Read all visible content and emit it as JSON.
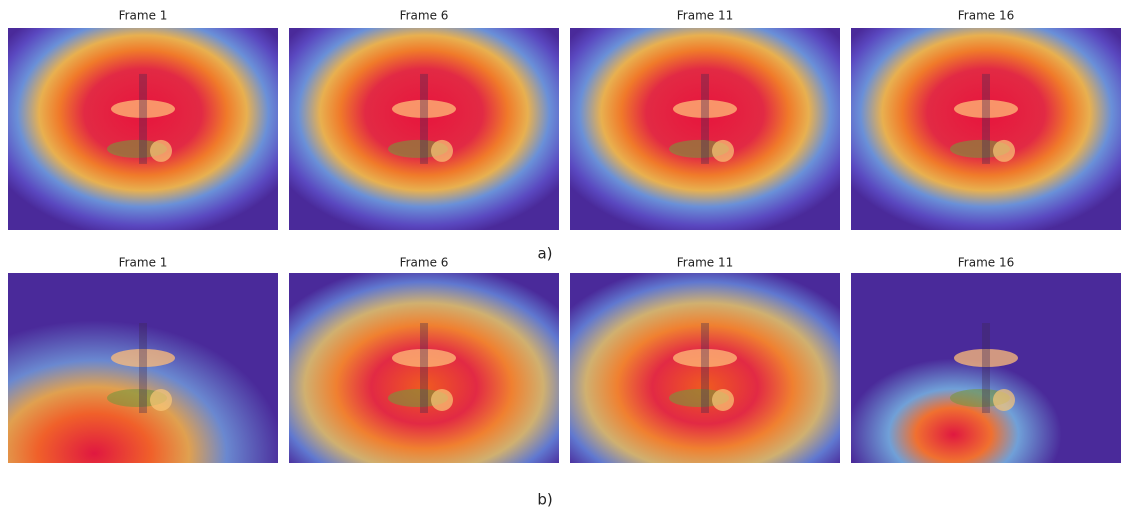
{
  "rows": [
    {
      "frames": [
        "Frame 1",
        "Frame 6",
        "Frame 11",
        "Frame 16"
      ],
      "label": "a)"
    },
    {
      "frames": [
        "Frame 1",
        "Frame 6",
        "Frame 11",
        "Frame 16"
      ],
      "label": "b)"
    }
  ]
}
